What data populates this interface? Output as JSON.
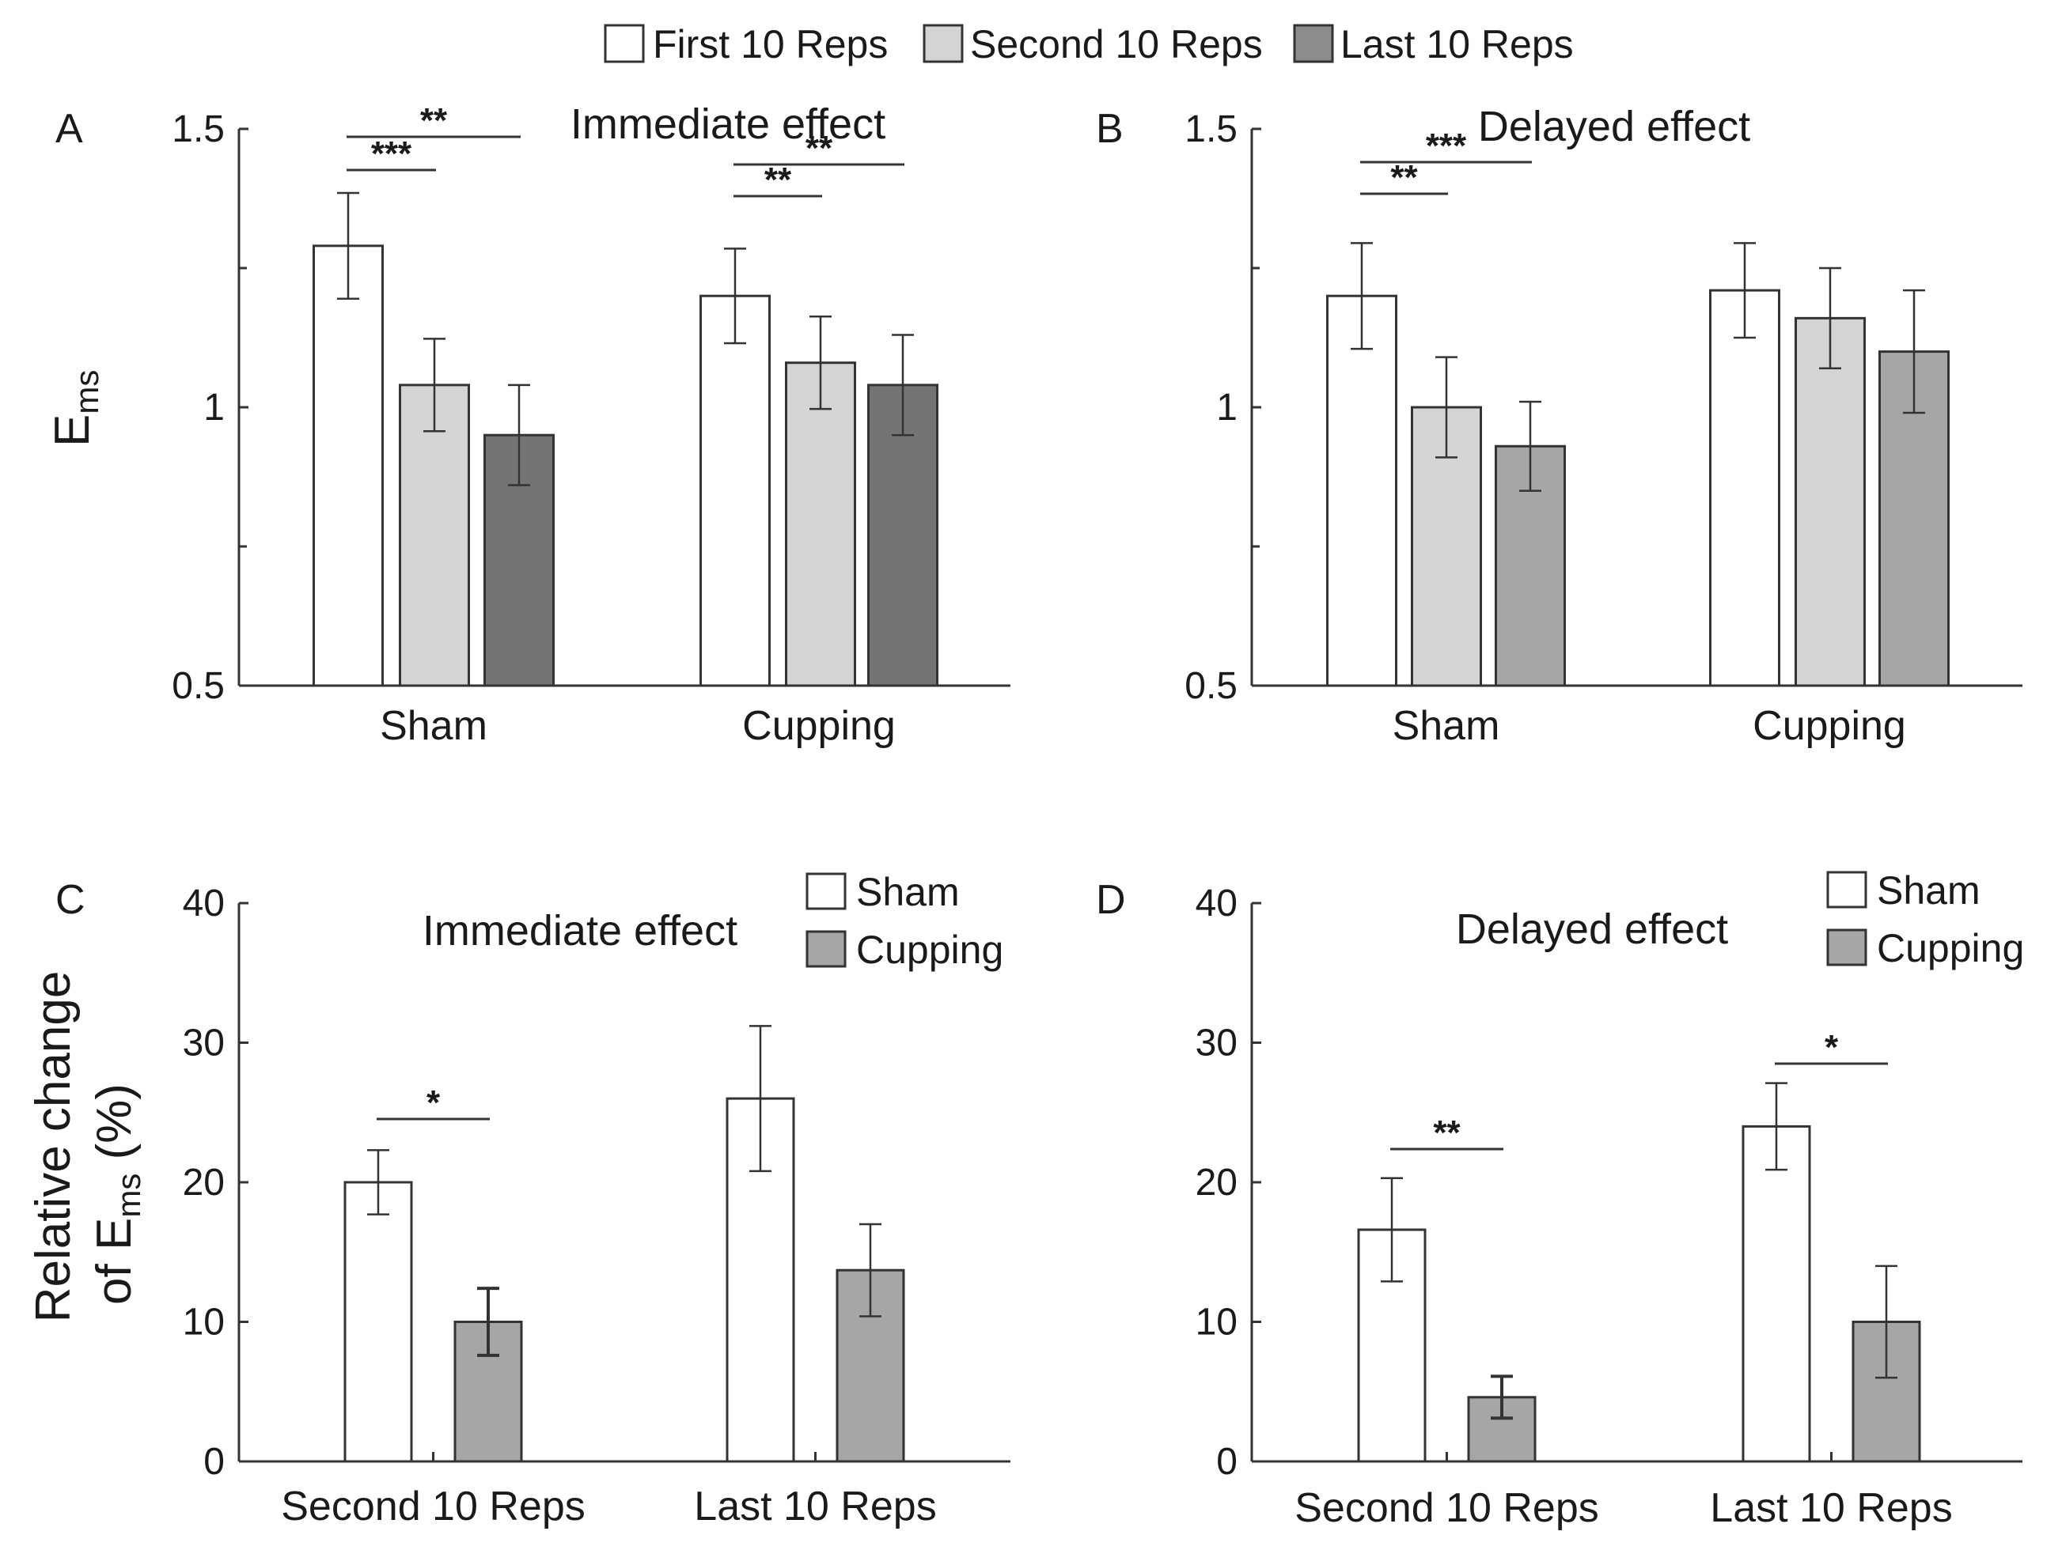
{
  "legend_top": [
    {
      "label": "First 10 Reps",
      "color": "#ffffff"
    },
    {
      "label": "Second 10 Reps",
      "color": "#d4d4d4"
    },
    {
      "label": "Last 10 Reps",
      "color": "#8c8c8c"
    }
  ],
  "chart_data": [
    {
      "id": "A",
      "type": "bar",
      "title": "Immediate effect",
      "ylabel": "E",
      "ylabel_sub": "ms",
      "ylim": [
        0.5,
        1.5
      ],
      "yticks": [
        "0.5",
        "1",
        "1.5"
      ],
      "categories": [
        "Sham",
        "Cupping"
      ],
      "series": [
        {
          "name": "First 10 Reps",
          "color": "#ffffff",
          "values": [
            1.29,
            1.2
          ],
          "errors": [
            0.095,
            0.085
          ]
        },
        {
          "name": "Second 10 Reps",
          "color": "#d4d4d4",
          "values": [
            1.04,
            1.08
          ],
          "errors": [
            0.083,
            0.083
          ]
        },
        {
          "name": "Last 10 Reps",
          "color": "#747474",
          "values": [
            0.95,
            1.04
          ],
          "errors": [
            0.09,
            0.09
          ]
        }
      ],
      "significance": [
        {
          "group": 0,
          "from": 0,
          "to": 1,
          "label": "***"
        },
        {
          "group": 0,
          "from": 0,
          "to": 2,
          "label": "**"
        },
        {
          "group": 1,
          "from": 0,
          "to": 1,
          "label": "**"
        },
        {
          "group": 1,
          "from": 0,
          "to": 2,
          "label": "**"
        }
      ]
    },
    {
      "id": "B",
      "type": "bar",
      "title": "Delayed effect",
      "ylim": [
        0.5,
        1.5
      ],
      "yticks": [
        "0.5",
        "1",
        "1.5"
      ],
      "categories": [
        "Sham",
        "Cupping"
      ],
      "series": [
        {
          "name": "First 10 Reps",
          "color": "#ffffff",
          "values": [
            1.2,
            1.21
          ],
          "errors": [
            0.095,
            0.085
          ]
        },
        {
          "name": "Second 10 Reps",
          "color": "#d4d4d4",
          "values": [
            1.0,
            1.16
          ],
          "errors": [
            0.09,
            0.09
          ]
        },
        {
          "name": "Last 10 Reps",
          "color": "#a6a6a6",
          "values": [
            0.93,
            1.1
          ],
          "errors": [
            0.08,
            0.11
          ]
        }
      ],
      "significance": [
        {
          "group": 0,
          "from": 0,
          "to": 1,
          "label": "**"
        },
        {
          "group": 0,
          "from": 0,
          "to": 2,
          "label": "***"
        }
      ]
    },
    {
      "id": "C",
      "type": "bar",
      "title": "Immediate effect",
      "ylabel_line1": "Relative change",
      "ylabel_line2_prefix": "of E",
      "ylabel_line2_sub": "ms",
      "ylabel_line2_suffix": " (%)",
      "ylim": [
        0,
        40
      ],
      "yticks": [
        "0",
        "10",
        "20",
        "30",
        "40"
      ],
      "categories": [
        "Second 10 Reps",
        "Last 10 Reps"
      ],
      "series": [
        {
          "name": "Sham",
          "color": "#ffffff",
          "values": [
            20,
            26
          ],
          "errors": [
            2.3,
            5.2
          ]
        },
        {
          "name": "Cupping",
          "color": "#a6a6a6",
          "values": [
            10,
            13.7
          ],
          "errors": [
            2.4,
            3.3
          ]
        }
      ],
      "significance": [
        {
          "group": 0,
          "from": 0,
          "to": 1,
          "label": "*"
        }
      ]
    },
    {
      "id": "D",
      "type": "bar",
      "title": "Delayed effect",
      "ylim": [
        0,
        40
      ],
      "yticks": [
        "0",
        "10",
        "20",
        "30",
        "40"
      ],
      "categories": [
        "Second 10 Reps",
        "Last 10 Reps"
      ],
      "series": [
        {
          "name": "Sham",
          "color": "#ffffff",
          "values": [
            16.6,
            24
          ],
          "errors": [
            3.7,
            3.1
          ]
        },
        {
          "name": "Cupping",
          "color": "#a6a6a6",
          "values": [
            4.6,
            10
          ],
          "errors": [
            1.5,
            4
          ]
        }
      ],
      "significance": [
        {
          "group": 0,
          "from": 0,
          "to": 1,
          "label": "**"
        },
        {
          "group": 1,
          "from": 0,
          "to": 1,
          "label": "*"
        }
      ]
    }
  ]
}
